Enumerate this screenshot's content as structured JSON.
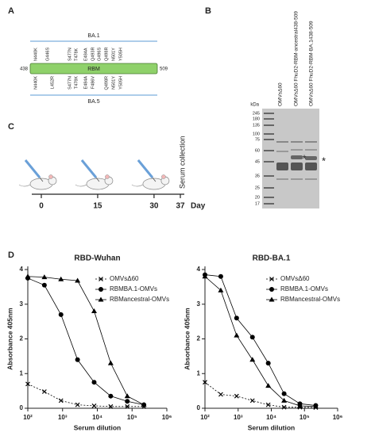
{
  "panel_a": {
    "label": "A",
    "variant_top": "BA.1",
    "variant_bottom": "BA.5",
    "domain": "RBM",
    "start": "438",
    "end": "509",
    "top_mutations": [
      {
        "label": "N440K",
        "color": "#222222"
      },
      {
        "label": "G446S",
        "color": "#2e75b6"
      },
      {
        "label": "S477N",
        "color": "#222222"
      },
      {
        "label": "T478K",
        "color": "#222222"
      },
      {
        "label": "E484A",
        "color": "#222222"
      },
      {
        "label": "Q493R",
        "color": "#2e75b6"
      },
      {
        "label": "G496S",
        "color": "#2e75b6"
      },
      {
        "label": "Q498R",
        "color": "#222222"
      },
      {
        "label": "N501Y",
        "color": "#222222"
      },
      {
        "label": "Y505H",
        "color": "#222222"
      }
    ],
    "bottom_mutations": [
      {
        "label": "N440K",
        "color": "#222222"
      },
      {
        "label": "L452R",
        "color": "#2e75b6"
      },
      {
        "label": "S477N",
        "color": "#222222"
      },
      {
        "label": "T478K",
        "color": "#222222"
      },
      {
        "label": "E484A",
        "color": "#222222"
      },
      {
        "label": "F486V",
        "color": "#2e75b6"
      },
      {
        "label": "Q498R",
        "color": "#222222"
      },
      {
        "label": "N501Y",
        "color": "#222222"
      },
      {
        "label": "Y505H",
        "color": "#222222"
      }
    ]
  },
  "panel_b": {
    "label": "B",
    "lanes": [
      "OMVsΔ60",
      "OMVsΔ60 FhuD2-RBM-ancestral438-509",
      "OMVsΔ60 FhuD2-RBM-BA.1438-509"
    ],
    "unit": "kDa",
    "markers": [
      "245",
      "180",
      "135",
      "100",
      "75",
      "60",
      "45",
      "35",
      "25",
      "20",
      "17"
    ],
    "star": "*"
  },
  "panel_c": {
    "label": "C",
    "days": [
      0,
      15,
      30,
      37
    ],
    "unit": "Day",
    "event": "Serum collection"
  },
  "panel_d": {
    "label": "D"
  },
  "chart_data": [
    {
      "type": "line",
      "title": "RBD-Wuhan",
      "x_label": "Serum dilution",
      "y_label": "Absorbance 405nm",
      "x_scale": "log",
      "x": [
        100,
        300,
        900,
        2700,
        8100,
        24300,
        72900,
        218700
      ],
      "xlim": [
        100,
        1000000
      ],
      "xticks": [
        {
          "value": 100,
          "label": "10²"
        },
        {
          "value": 1000,
          "label": "10³"
        },
        {
          "value": 10000,
          "label": "10⁴"
        },
        {
          "value": 100000,
          "label": "10⁵"
        },
        {
          "value": 1000000,
          "label": "10⁶"
        }
      ],
      "ylim": [
        0,
        4
      ],
      "yticks": [
        0,
        1,
        2,
        3,
        4
      ],
      "legend": "upper right",
      "series": [
        {
          "name": "OMVsΔ60",
          "color": "#000000",
          "marker": "x",
          "dash": true,
          "values": [
            0.7,
            0.48,
            0.22,
            0.1,
            0.07,
            0.05,
            0.05,
            0.05
          ]
        },
        {
          "name": "RBMBA.1-OMVs",
          "color": "#000000",
          "marker": "circle",
          "dash": false,
          "values": [
            3.75,
            3.55,
            2.7,
            1.4,
            0.75,
            0.35,
            0.2,
            0.1
          ]
        },
        {
          "name": "RBMancestral-OMVs",
          "color": "#000000",
          "marker": "triangle",
          "dash": false,
          "values": [
            3.8,
            3.78,
            3.72,
            3.68,
            2.8,
            1.3,
            0.35,
            0.1
          ]
        }
      ]
    },
    {
      "type": "line",
      "title": "RBD-BA.1",
      "x_label": "Serum dilution",
      "y_label": "Absorbance 405nm",
      "x_scale": "log",
      "x": [
        100,
        300,
        900,
        2700,
        8100,
        24300,
        72900,
        218700
      ],
      "xlim": [
        100,
        1000000
      ],
      "xticks": [
        {
          "value": 100,
          "label": "10²"
        },
        {
          "value": 1000,
          "label": "10³"
        },
        {
          "value": 10000,
          "label": "10⁴"
        },
        {
          "value": 100000,
          "label": "10⁵"
        },
        {
          "value": 1000000,
          "label": "10⁶"
        }
      ],
      "ylim": [
        0,
        4
      ],
      "yticks": [
        0,
        1,
        2,
        3,
        4
      ],
      "legend": "upper right",
      "series": [
        {
          "name": "OMVsΔ60",
          "color": "#000000",
          "marker": "x",
          "dash": true,
          "values": [
            0.75,
            0.4,
            0.35,
            0.22,
            0.1,
            0.03,
            0.03,
            0.02
          ]
        },
        {
          "name": "RBMBA.1-OMVs",
          "color": "#000000",
          "marker": "circle",
          "dash": false,
          "values": [
            3.85,
            3.8,
            2.6,
            2.05,
            1.3,
            0.42,
            0.13,
            0.08
          ]
        },
        {
          "name": "RBMancestral-OMVs",
          "color": "#000000",
          "marker": "triangle",
          "dash": false,
          "values": [
            3.8,
            3.4,
            2.1,
            1.4,
            0.65,
            0.22,
            0.07,
            0.05
          ]
        }
      ]
    }
  ]
}
